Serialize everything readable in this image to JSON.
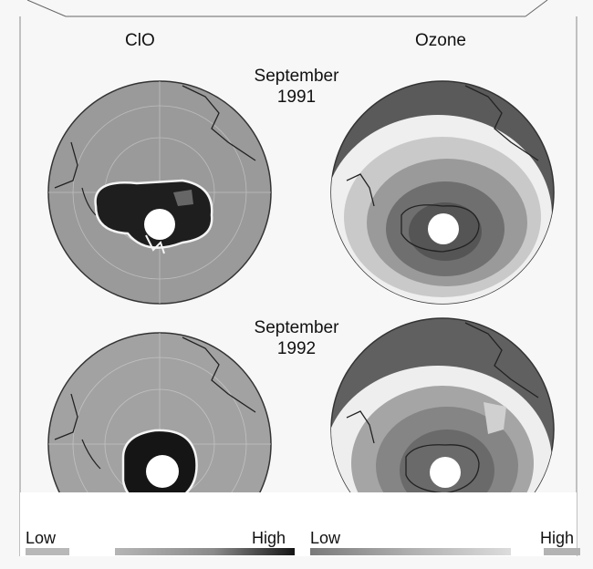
{
  "columns": {
    "left": "ClO",
    "right": "Ozone"
  },
  "rows": [
    {
      "month": "September",
      "year": "1991"
    },
    {
      "month": "September",
      "year": "1992"
    }
  ],
  "scales": {
    "clo": {
      "low": "Low",
      "high": "High"
    },
    "ozone": {
      "low": "Low",
      "high": "High"
    }
  },
  "colors": {
    "background": "#f7f7f7",
    "land_outline": "#222222",
    "clo_high": "#151515",
    "ozone_low": "#4a4a4a"
  }
}
